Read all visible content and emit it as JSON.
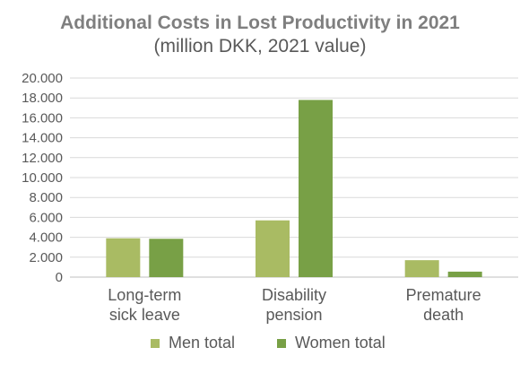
{
  "chart_data": {
    "type": "bar",
    "title": "Additional Costs in Lost Productivity in 2021",
    "subtitle": "(million DKK, 2021 value)",
    "categories": [
      [
        "Long-term",
        "sick leave"
      ],
      [
        "Disability",
        "pension"
      ],
      [
        "Premature",
        "death"
      ]
    ],
    "series": [
      {
        "name": "Men total",
        "color": "#a9bb63",
        "values": [
          3900,
          5700,
          1700
        ]
      },
      {
        "name": "Women total",
        "color": "#78a046",
        "values": [
          3850,
          17800,
          550
        ]
      }
    ],
    "yticks": [
      "0",
      "2.000",
      "4.000",
      "6.000",
      "8.000",
      "10.000",
      "12.000",
      "14.000",
      "16.000",
      "18.000",
      "20.000"
    ],
    "ylim": [
      0,
      20000
    ],
    "grid": true,
    "legend": "bottom"
  }
}
